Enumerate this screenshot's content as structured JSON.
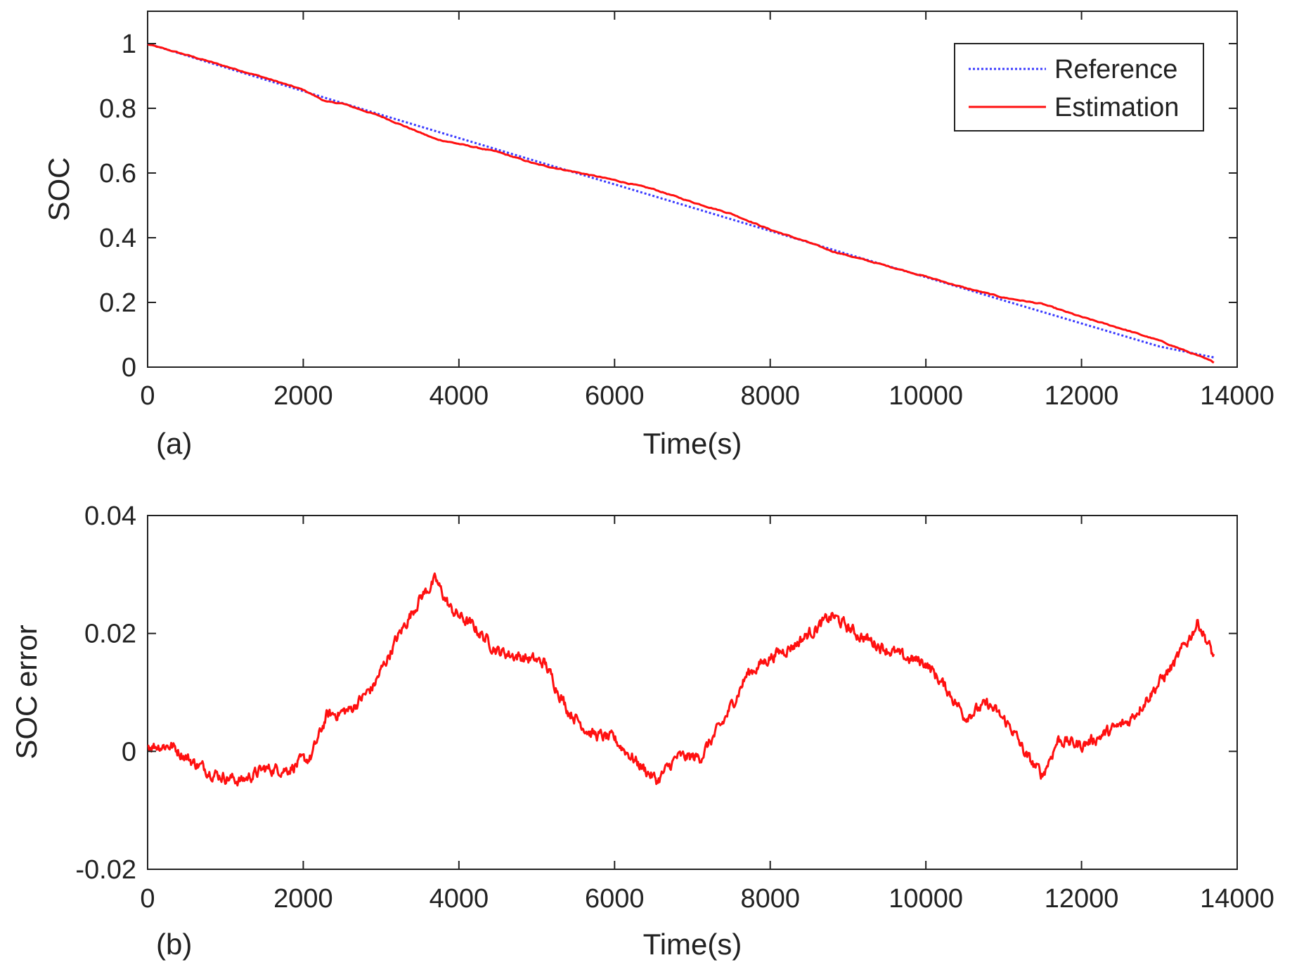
{
  "figure": {
    "panel_labels": [
      "(a)",
      "(b)"
    ]
  },
  "colors": {
    "reference": "#3a3aff",
    "estimation": "#ff1010",
    "axis": "#222222"
  },
  "chart_data": [
    {
      "id": "a",
      "type": "line",
      "panel_label": "(a)",
      "title": "",
      "xlabel": "Time(s)",
      "ylabel": "SOC",
      "xlim": [
        0,
        14000
      ],
      "ylim": [
        0,
        1.1
      ],
      "xticks": [
        0,
        2000,
        4000,
        6000,
        8000,
        10000,
        12000,
        14000
      ],
      "xtick_labels": [
        "0",
        "2000",
        "4000",
        "6000",
        "8000",
        "10000",
        "12000",
        "14000"
      ],
      "yticks": [
        0,
        0.2,
        0.4,
        0.6,
        0.8,
        1
      ],
      "ytick_labels": [
        "0",
        "0.2",
        "0.4",
        "0.6",
        "0.8",
        "1"
      ],
      "legend": {
        "position": "top-right",
        "entries": [
          "Reference",
          "Estimation"
        ]
      },
      "series": [
        {
          "name": "Reference",
          "style": "dotted",
          "x": [
            0,
            1000,
            2000,
            3000,
            4000,
            5000,
            6000,
            7000,
            8000,
            9000,
            10000,
            11000,
            12000,
            13000,
            13700
          ],
          "values": [
            1.0,
            0.926,
            0.853,
            0.78,
            0.708,
            0.636,
            0.565,
            0.493,
            0.421,
            0.349,
            0.278,
            0.206,
            0.135,
            0.064,
            0.03
          ]
        },
        {
          "name": "Estimation",
          "style": "solid",
          "x": [
            0,
            500,
            1000,
            1500,
            2000,
            2300,
            2500,
            3000,
            3500,
            3700,
            4000,
            4500,
            5000,
            5500,
            6000,
            6500,
            7000,
            7500,
            8000,
            8500,
            8800,
            9000,
            9500,
            10000,
            10500,
            11000,
            11500,
            12000,
            12500,
            13000,
            13500,
            13700
          ],
          "values": [
            0.998,
            0.965,
            0.93,
            0.895,
            0.857,
            0.82,
            0.815,
            0.775,
            0.725,
            0.705,
            0.69,
            0.665,
            0.627,
            0.603,
            0.578,
            0.55,
            0.51,
            0.474,
            0.425,
            0.385,
            0.358,
            0.345,
            0.313,
            0.28,
            0.245,
            0.215,
            0.195,
            0.155,
            0.12,
            0.082,
            0.035,
            0.015
          ]
        }
      ]
    },
    {
      "id": "b",
      "type": "line",
      "panel_label": "(b)",
      "title": "",
      "xlabel": "Time(s)",
      "ylabel": "SOC error",
      "xlim": [
        0,
        14000
      ],
      "ylim": [
        -0.02,
        0.04
      ],
      "xticks": [
        0,
        2000,
        4000,
        6000,
        8000,
        10000,
        12000,
        14000
      ],
      "xtick_labels": [
        "0",
        "2000",
        "4000",
        "6000",
        "8000",
        "10000",
        "12000",
        "14000"
      ],
      "yticks": [
        -0.02,
        0,
        0.02,
        0.04
      ],
      "ytick_labels": [
        "-0.02",
        "0",
        "0.02",
        "0.04"
      ],
      "series": [
        {
          "name": "SOC error",
          "style": "solid",
          "x": [
            0,
            300,
            600,
            900,
            1200,
            1500,
            1800,
            2100,
            2300,
            2600,
            2900,
            3200,
            3500,
            3700,
            3900,
            4200,
            4500,
            4800,
            5100,
            5400,
            5700,
            6000,
            6300,
            6550,
            6800,
            7100,
            7400,
            7700,
            8000,
            8300,
            8600,
            8800,
            9100,
            9400,
            9700,
            10000,
            10300,
            10500,
            10800,
            11100,
            11300,
            11500,
            11700,
            12000,
            12300,
            12600,
            12900,
            13200,
            13500,
            13700
          ],
          "values": [
            0.001,
            0.001,
            -0.002,
            -0.004,
            -0.005,
            -0.003,
            -0.003,
            -0.001,
            0.006,
            0.007,
            0.011,
            0.019,
            0.026,
            0.029,
            0.024,
            0.021,
            0.017,
            0.016,
            0.015,
            0.007,
            0.003,
            0.002,
            -0.002,
            -0.005,
            -0.001,
            -0.001,
            0.005,
            0.013,
            0.016,
            0.018,
            0.021,
            0.023,
            0.02,
            0.018,
            0.016,
            0.015,
            0.01,
            0.006,
            0.008,
            0.004,
            -0.001,
            -0.004,
            0.002,
            0.001,
            0.003,
            0.005,
            0.01,
            0.015,
            0.022,
            0.016
          ]
        }
      ]
    }
  ]
}
